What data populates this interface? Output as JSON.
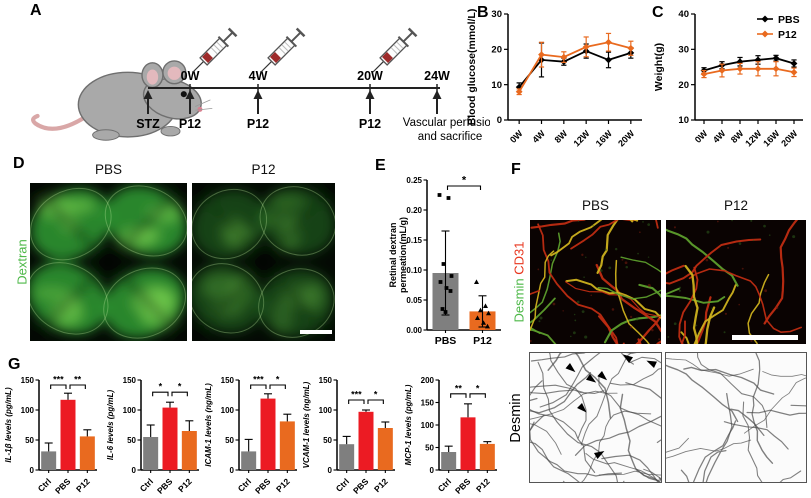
{
  "figure_labels": {
    "A": "A",
    "B": "B",
    "C": "C",
    "D": "D",
    "E": "E",
    "F": "F",
    "G": "G"
  },
  "panelA": {
    "timeline_ticks": [
      "0W",
      "4W",
      "20W",
      "24W"
    ],
    "below_labels": [
      "STZ",
      "P12",
      "P12",
      "P12"
    ],
    "end_note": [
      "Vascular perfusion",
      "and sacrifice"
    ],
    "icons": [
      "mouse-icon",
      "syringe-icon"
    ]
  },
  "panelD": {
    "col1": "PBS",
    "col2": "P12",
    "side_label": "Dextran",
    "side_color": "#4DB848"
  },
  "panelF": {
    "col1": "PBS",
    "col2": "P12",
    "side_top": [
      {
        "text": "Desmin",
        "color": "#4DB848"
      },
      {
        "text": "CD31",
        "color": "#E8341C"
      }
    ],
    "side_bottom": "Desmin"
  },
  "colors": {
    "pbs_line": "#000000",
    "p12_orange": "#E96A1F",
    "ctrl_gray": "#7F7F7F",
    "pbs_red": "#EC1B23",
    "dextran_green": "#4DB848",
    "cd31_red": "#E8341C"
  },
  "chart_data": [
    {
      "id": "blood-glucose",
      "type": "line",
      "panel": "B",
      "ylabel": "Blood glucose(mmol/L)",
      "ylim": [
        0,
        30
      ],
      "yticks": [
        0,
        10,
        20,
        30
      ],
      "categories": [
        "0W",
        "4W",
        "8W",
        "12W",
        "16W",
        "20W"
      ],
      "series": [
        {
          "name": "PBS",
          "color": "#000000",
          "values": [
            9.3,
            17.0,
            16.5,
            19.5,
            17.0,
            19.0
          ],
          "errors": [
            1.2,
            4.8,
            1.0,
            2.0,
            2.2,
            1.5
          ]
        },
        {
          "name": "P12",
          "color": "#E96A1F",
          "values": [
            8.0,
            18.5,
            17.8,
            20.7,
            22.0,
            20.3
          ],
          "errors": [
            0.8,
            3.5,
            1.5,
            2.8,
            2.5,
            2.0
          ]
        }
      ]
    },
    {
      "id": "body-weight",
      "type": "line",
      "panel": "C",
      "legend": true,
      "ylabel": "Weight(g)",
      "ylim": [
        10,
        40
      ],
      "yticks": [
        10,
        20,
        30,
        40
      ],
      "categories": [
        "0W",
        "4W",
        "8W",
        "12W",
        "16W",
        "20W"
      ],
      "series": [
        {
          "name": "PBS",
          "color": "#000000",
          "values": [
            24.0,
            25.5,
            26.5,
            27.0,
            27.5,
            26.0
          ],
          "errors": [
            0.8,
            1.0,
            1.2,
            1.2,
            0.8,
            1.0
          ]
        },
        {
          "name": "P12",
          "color": "#E96A1F",
          "values": [
            23.0,
            24.0,
            24.5,
            24.5,
            24.5,
            23.5
          ],
          "errors": [
            1.0,
            1.8,
            1.5,
            2.0,
            2.0,
            1.2
          ]
        }
      ]
    },
    {
      "id": "retinal-dextran-permeation",
      "type": "bar",
      "panel": "E",
      "ylabel_lines": [
        "Retinal dextran",
        "permeation(mL/g)"
      ],
      "ylim": [
        0,
        0.25
      ],
      "yticks": [
        "0.00",
        "0.05",
        "0.10",
        "0.15",
        "0.20",
        "0.25"
      ],
      "categories": [
        "PBS",
        "P12"
      ],
      "values": [
        0.095,
        0.031
      ],
      "errors": [
        0.07,
        0.026
      ],
      "error_style": "both",
      "colors": [
        "#7F7F7F",
        "#E96A1F"
      ],
      "xtick_rotate": false,
      "points": [
        [
          0.225,
          0.22,
          0.11,
          0.09,
          0.08,
          0.07,
          0.065,
          0.035,
          0.03
        ],
        [
          0.08,
          0.04,
          0.033,
          0.028,
          0.02,
          0.012,
          0.006
        ]
      ],
      "significance": [
        {
          "a": 0,
          "b": 1,
          "label": "*"
        }
      ]
    },
    {
      "id": "il-1b",
      "type": "bar",
      "panel": "G",
      "ylabel": "IL-1β levels (pg/mL)",
      "ylabel_italic": true,
      "ylim": [
        0,
        150
      ],
      "yticks": [
        0,
        50,
        100,
        150
      ],
      "categories": [
        "Ctrl",
        "PBS",
        "P12"
      ],
      "values": [
        31,
        117,
        56
      ],
      "errors": [
        14,
        11,
        11
      ],
      "error_style": "up",
      "colors": [
        "#7F7F7F",
        "#EC1B23",
        "#E96A1F"
      ],
      "significance": [
        {
          "a": 0,
          "b": 1,
          "label": "***"
        },
        {
          "a": 1,
          "b": 2,
          "label": "**"
        }
      ]
    },
    {
      "id": "il-6",
      "type": "bar",
      "panel": "G",
      "ylabel": "IL-6 levels (pg/mL)",
      "ylabel_italic": true,
      "ylim": [
        0,
        150
      ],
      "yticks": [
        0,
        50,
        100,
        150
      ],
      "categories": [
        "Ctrl",
        "PBS",
        "P12"
      ],
      "values": [
        55,
        104,
        65
      ],
      "errors": [
        20,
        9,
        17
      ],
      "error_style": "up",
      "colors": [
        "#7F7F7F",
        "#EC1B23",
        "#E96A1F"
      ],
      "significance": [
        {
          "a": 0,
          "b": 1,
          "label": "*"
        },
        {
          "a": 1,
          "b": 2,
          "label": "*"
        }
      ]
    },
    {
      "id": "icam-1",
      "type": "bar",
      "panel": "G",
      "ylabel": "ICAM-1 levels (ng/mL)",
      "ylabel_italic": true,
      "ylim": [
        0,
        150
      ],
      "yticks": [
        0,
        50,
        100,
        150
      ],
      "categories": [
        "Ctrl",
        "PBS",
        "P12"
      ],
      "values": [
        31,
        119,
        81
      ],
      "errors": [
        20,
        8,
        12
      ],
      "error_style": "up",
      "colors": [
        "#7F7F7F",
        "#EC1B23",
        "#E96A1F"
      ],
      "significance": [
        {
          "a": 0,
          "b": 1,
          "label": "***"
        },
        {
          "a": 1,
          "b": 2,
          "label": "*"
        }
      ]
    },
    {
      "id": "vcam-1",
      "type": "bar",
      "panel": "G",
      "ylabel": "VCAM-1 levels (ng/mL)",
      "ylabel_italic": true,
      "ylim": [
        0,
        150
      ],
      "yticks": [
        0,
        50,
        100,
        150
      ],
      "categories": [
        "Ctrl",
        "PBS",
        "P12"
      ],
      "values": [
        43,
        97,
        70
      ],
      "errors": [
        13,
        3,
        10
      ],
      "error_style": "up",
      "colors": [
        "#7F7F7F",
        "#EC1B23",
        "#E96A1F"
      ],
      "significance": [
        {
          "a": 0,
          "b": 1,
          "label": "***"
        },
        {
          "a": 1,
          "b": 2,
          "label": "*"
        }
      ]
    },
    {
      "id": "mcp-1",
      "type": "bar",
      "panel": "G",
      "ylabel": "MCP-1 levels (pg/mL)",
      "ylabel_italic": true,
      "ylim": [
        0,
        200
      ],
      "yticks": [
        0,
        50,
        100,
        150,
        200
      ],
      "categories": [
        "Ctrl",
        "PBS",
        "P12"
      ],
      "values": [
        40,
        117,
        58
      ],
      "errors": [
        13,
        30,
        5
      ],
      "error_style": "up",
      "colors": [
        "#7F7F7F",
        "#EC1B23",
        "#E96A1F"
      ],
      "significance": [
        {
          "a": 0,
          "b": 1,
          "label": "**"
        },
        {
          "a": 1,
          "b": 2,
          "label": "*"
        }
      ]
    }
  ]
}
